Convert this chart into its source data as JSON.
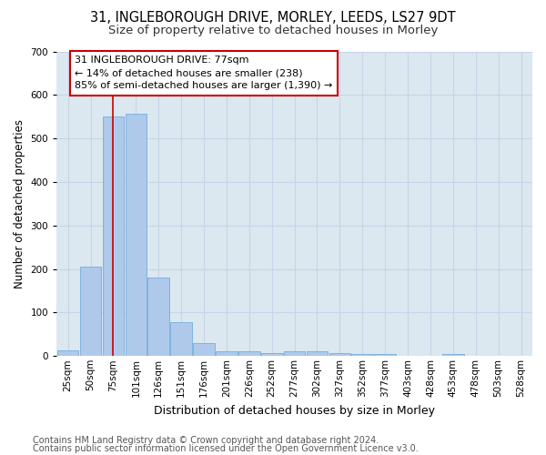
{
  "title1": "31, INGLEBOROUGH DRIVE, MORLEY, LEEDS, LS27 9DT",
  "title2": "Size of property relative to detached houses in Morley",
  "xlabel": "Distribution of detached houses by size in Morley",
  "ylabel": "Number of detached properties",
  "categories": [
    "25sqm",
    "50sqm",
    "75sqm",
    "101sqm",
    "126sqm",
    "151sqm",
    "176sqm",
    "201sqm",
    "226sqm",
    "252sqm",
    "277sqm",
    "302sqm",
    "327sqm",
    "352sqm",
    "377sqm",
    "403sqm",
    "428sqm",
    "453sqm",
    "478sqm",
    "503sqm",
    "528sqm"
  ],
  "values": [
    13,
    205,
    550,
    557,
    180,
    78,
    29,
    12,
    10,
    7,
    10,
    10,
    6,
    5,
    5,
    0,
    0,
    5,
    0,
    0,
    0
  ],
  "bar_color": "#aec9ea",
  "bar_edge_color": "#7fb3e0",
  "vline_color": "#cc0000",
  "vline_x": 2,
  "annotation_text": "31 INGLEBOROUGH DRIVE: 77sqm\n← 14% of detached houses are smaller (238)\n85% of semi-detached houses are larger (1,390) →",
  "annotation_box_facecolor": "#ffffff",
  "annotation_box_edgecolor": "#cc0000",
  "ylim": [
    0,
    700
  ],
  "yticks": [
    0,
    100,
    200,
    300,
    400,
    500,
    600,
    700
  ],
  "grid_color": "#c8d4e8",
  "bg_color": "#dce8f0",
  "footer1": "Contains HM Land Registry data © Crown copyright and database right 2024.",
  "footer2": "Contains public sector information licensed under the Open Government Licence v3.0.",
  "title1_fontsize": 10.5,
  "title2_fontsize": 9.5,
  "xlabel_fontsize": 9,
  "ylabel_fontsize": 8.5,
  "tick_fontsize": 7.5,
  "annotation_fontsize": 8,
  "footer_fontsize": 7
}
